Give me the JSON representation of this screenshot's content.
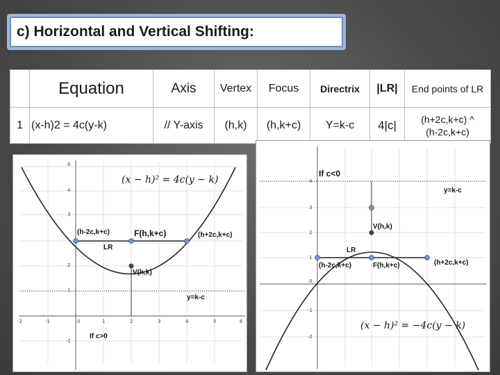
{
  "title": "c) Horizontal and Vertical Shifting:",
  "table": {
    "headers": {
      "equation": "Equation",
      "axis": "Axis",
      "vertex": "Vertex",
      "focus": "Focus",
      "directrix": "Directrix",
      "lr": "|LR|",
      "endpoints": "End points of LR"
    },
    "row": {
      "num": "1",
      "equation": "(x-h)2 = 4c(y-k)",
      "axis": "// Y-axis",
      "vertex": "(h,k)",
      "focus": "(h,k+c)",
      "directrix": "Y=k-c",
      "lr": "4|c|",
      "endpoints_line1": "(h+2c,k+c) ^",
      "endpoints_line2": "(h-2c,k+c)"
    }
  },
  "graph_left": {
    "formula": "(x − h)² = 4c(y − k)",
    "condition": "If c>0",
    "labels": {
      "left_end": "(h-2c,k+c)",
      "focus": "F(h,k+c)",
      "right_end": "(h+2c,k+c)",
      "lr": "LR",
      "vertex": "V(h,k)",
      "directrix": "y=k-c"
    },
    "x_ticks": [
      "-2",
      "-1",
      "0",
      "1",
      "2",
      "3",
      "4",
      "5",
      "6"
    ],
    "y_ticks": [
      "6",
      "4",
      "3",
      "2",
      "1",
      "-1"
    ]
  },
  "graph_right": {
    "formula": "(x − h)² = −4c(y − k)",
    "condition": "If c<0",
    "labels": {
      "directrix": "y=k-c",
      "vertex": "V(h,k)",
      "lr": "LR",
      "left_end": "(h-2c,k+c)",
      "focus": "F(h,k+c)",
      "right_end": "(h+2c,k+c)"
    },
    "y_ticks": [
      "4",
      "3",
      "2",
      "1",
      "0",
      "-1",
      "-2"
    ]
  }
}
